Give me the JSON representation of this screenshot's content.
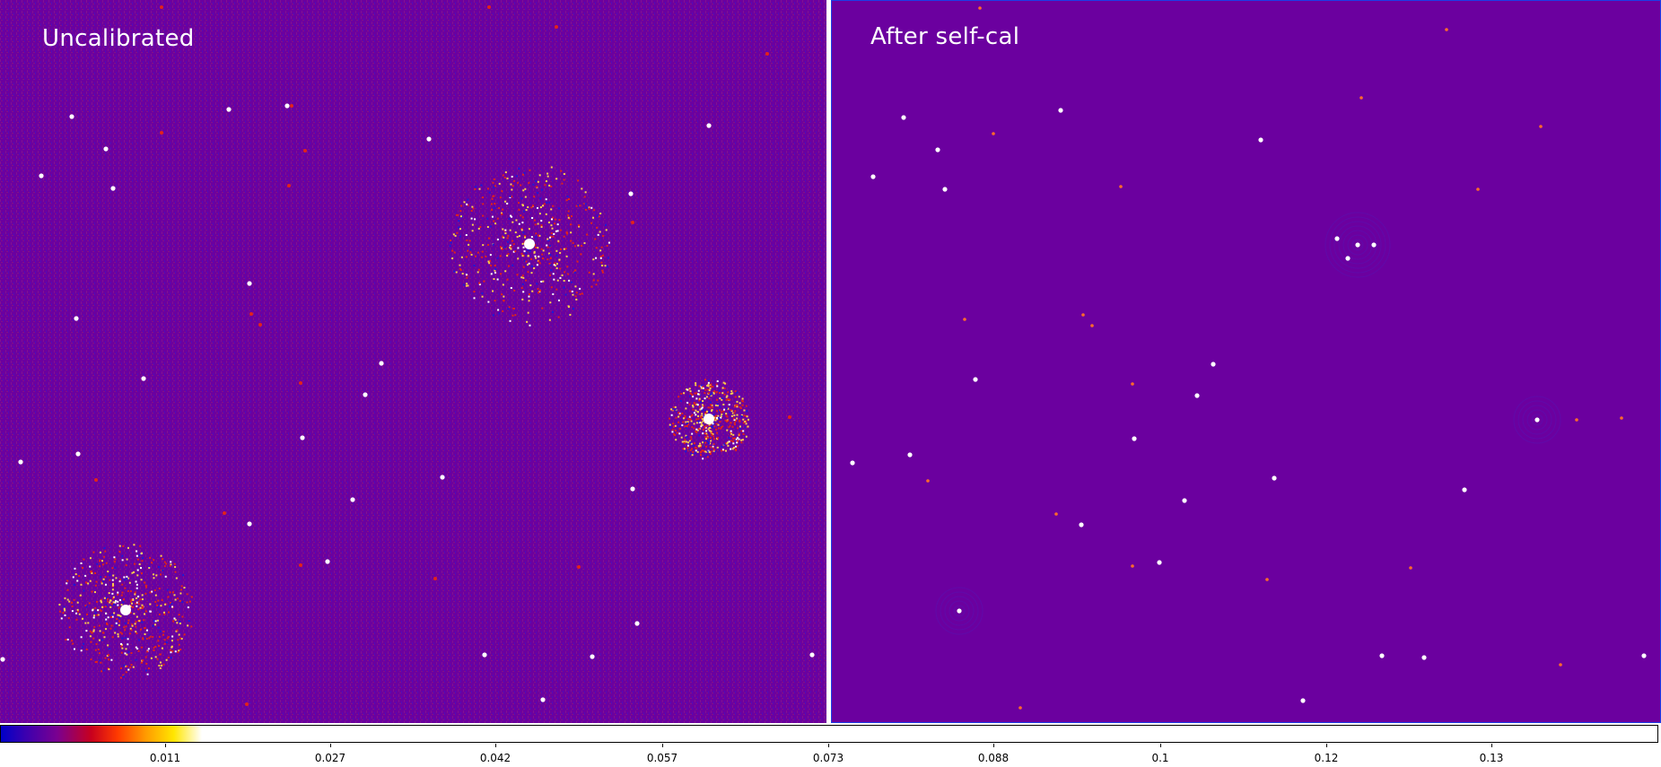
{
  "panels": {
    "left": {
      "title": "Uncalibrated"
    },
    "right": {
      "title": "After self-cal"
    }
  },
  "colors": {
    "background": "#6b009f",
    "source": "#ffffff",
    "speckle_red": "#e2231a",
    "speckle_blue": "#1b1bd8",
    "panel_border": "#1b3fe8"
  },
  "colorbar": {
    "colormap": "blue-purple-red-orange-yellow-white",
    "tick_labels": [
      "0.011",
      "0.027",
      "0.042",
      "0.057",
      "0.073",
      "0.088",
      "0.1",
      "0.12",
      "0.13"
    ]
  }
}
